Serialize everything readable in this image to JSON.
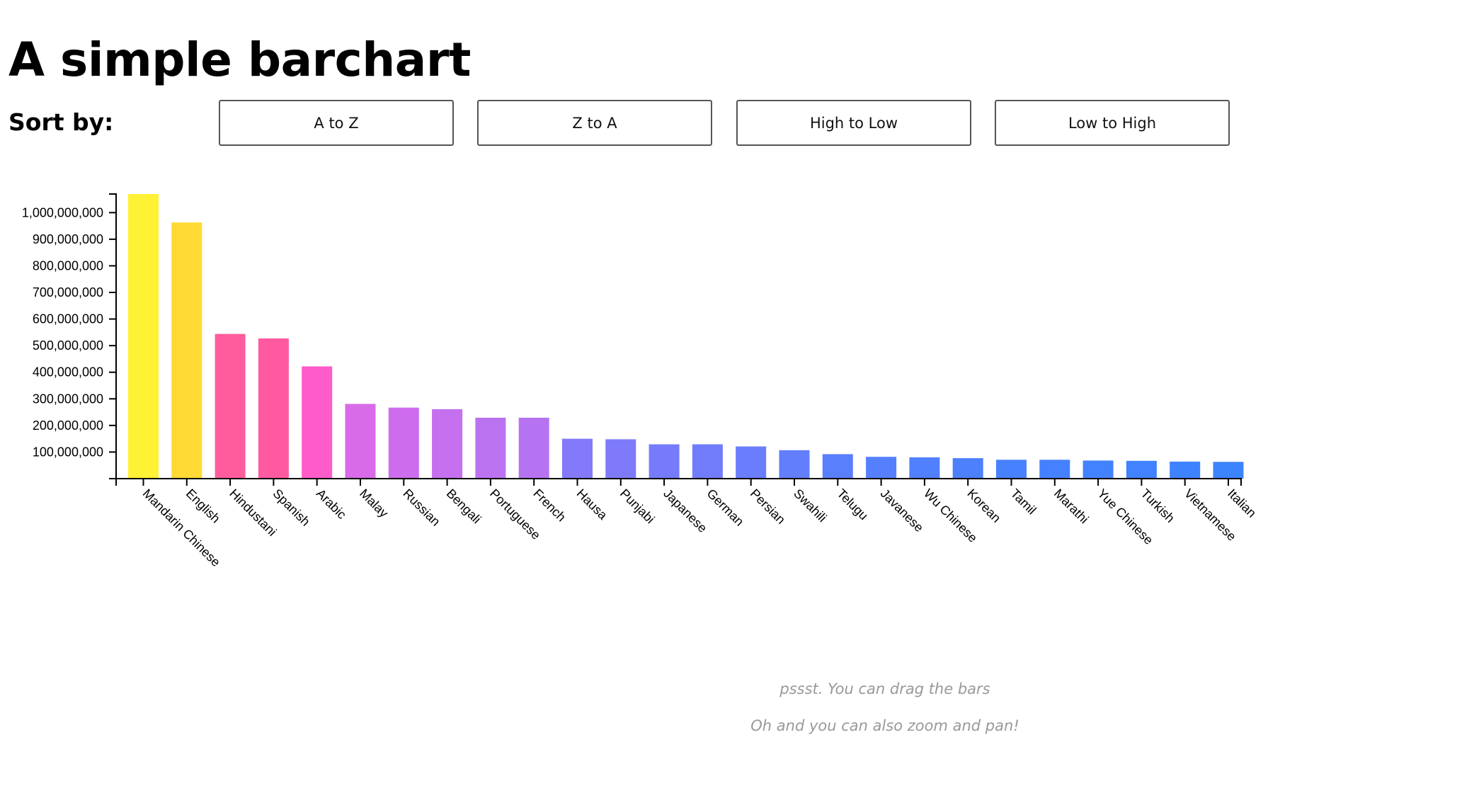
{
  "header": {
    "title": "A simple barchart"
  },
  "sort": {
    "label": "Sort by:",
    "buttons": [
      "A to Z",
      "Z to A",
      "High to Low",
      "Low to High"
    ]
  },
  "hints": {
    "drag": "pssst. You can drag the bars",
    "zoom": "Oh and you can also zoom and pan!"
  },
  "chart_data": {
    "type": "bar",
    "title": "",
    "xlabel": "",
    "ylabel": "",
    "ylim": [
      0,
      1070000000
    ],
    "yticks": [
      100000000,
      200000000,
      300000000,
      400000000,
      500000000,
      600000000,
      700000000,
      800000000,
      900000000,
      1000000000
    ],
    "grid": false,
    "categories": [
      "Mandarin Chinese",
      "English",
      "Hindustani",
      "Spanish",
      "Arabic",
      "Malay",
      "Russian",
      "Bengali",
      "Portuguese",
      "French",
      "Hausa",
      "Punjabi",
      "Japanese",
      "German",
      "Persian",
      "Swahili",
      "Telugu",
      "Javanese",
      "Wu Chinese",
      "Korean",
      "Tamil",
      "Marathi",
      "Yue Chinese",
      "Turkish",
      "Vietnamese",
      "Italian"
    ],
    "values": [
      1070000000,
      963000000,
      544000000,
      527000000,
      422000000,
      281000000,
      267000000,
      261000000,
      229000000,
      229000000,
      150000000,
      148000000,
      129000000,
      129000000,
      121000000,
      107000000,
      92000000,
      82000000,
      80000000,
      77000000,
      71000000,
      71000000,
      68000000,
      67000000,
      64000000,
      63000000
    ],
    "colors": [
      "#fff134",
      "#ffd934",
      "#ff5c9d",
      "#ff5aa0",
      "#ff5bc9",
      "#d86be7",
      "#cd6ded",
      "#c570ef",
      "#bb72f1",
      "#b573f1",
      "#8479f9",
      "#7e7afa",
      "#757bfb",
      "#717cfb",
      "#6a7dfc",
      "#627efd",
      "#597ffd",
      "#557ffd",
      "#5080fd",
      "#4c80fd",
      "#4781fe",
      "#4581fe",
      "#4382fe",
      "#4182fe",
      "#3f82fe",
      "#3c83fe"
    ]
  }
}
